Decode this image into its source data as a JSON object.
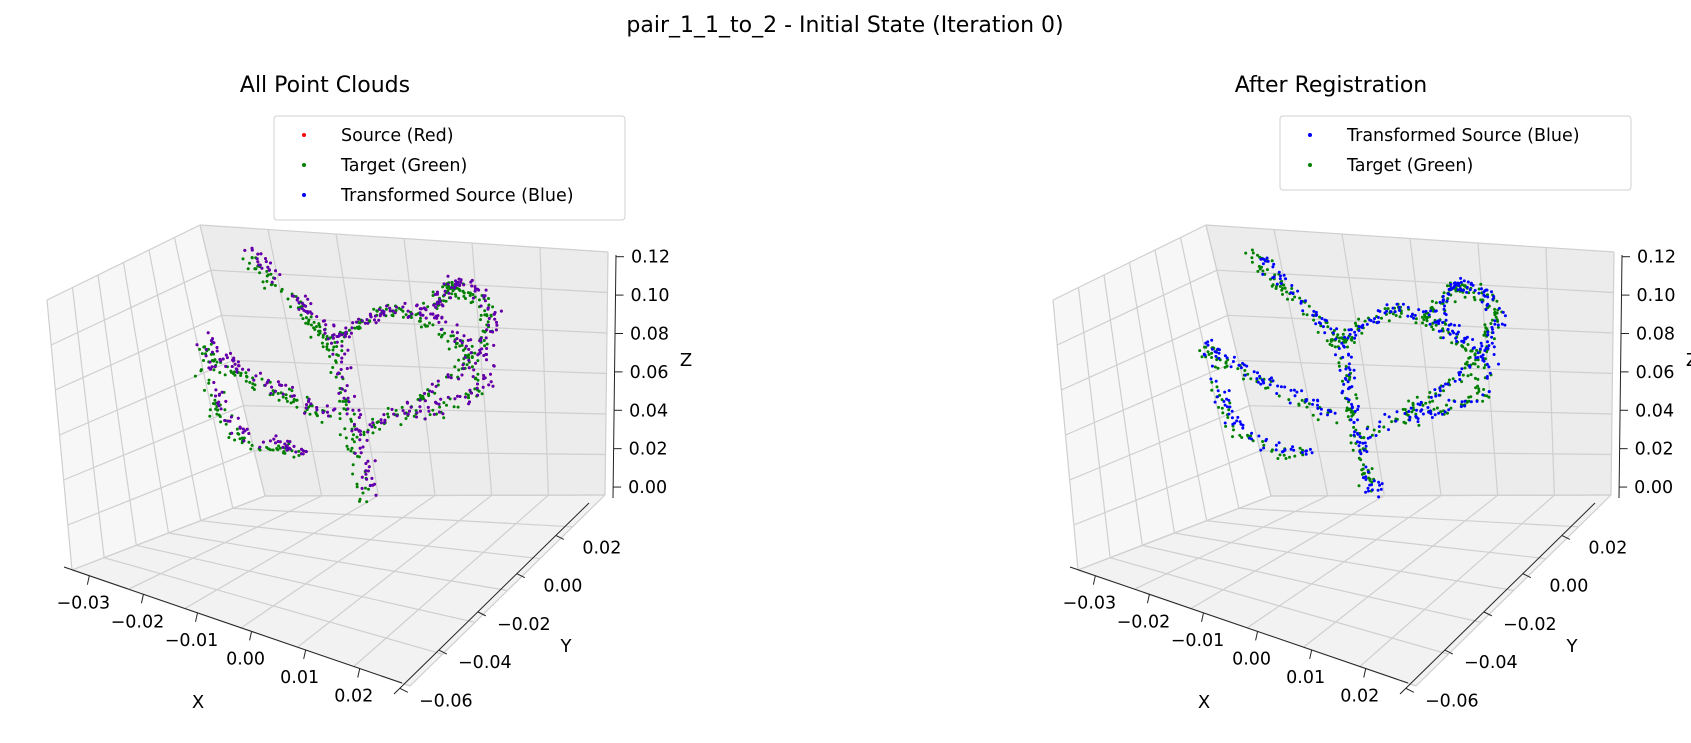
{
  "figure": {
    "suptitle": "pair_1_1_to_2 - Initial State (Iteration 0)"
  },
  "colors": {
    "source": "#ff0000",
    "target": "#008000",
    "transformed": "#0000ff",
    "overlap": "#5a00b4"
  },
  "chart_data": [
    {
      "type": "scatter",
      "subtype": "3d",
      "title": "All Point Clouds",
      "xlabel": "X",
      "ylabel": "Y",
      "zlabel": "Z",
      "xticks": [
        "−0.03",
        "−0.02",
        "−0.01",
        "0.00",
        "0.01",
        "0.02"
      ],
      "yticks": [
        "−0.06",
        "−0.04",
        "−0.02",
        "0.00",
        "0.02"
      ],
      "zticks": [
        "0.00",
        "0.02",
        "0.04",
        "0.06",
        "0.08",
        "0.10",
        "0.12"
      ],
      "xlim": [
        -0.035,
        0.028
      ],
      "ylim": [
        -0.065,
        0.035
      ],
      "zlim": [
        0.0,
        0.125
      ],
      "legend_placement": "upper-right",
      "legend": [
        "Source (Red)",
        "Target (Green)",
        "Transformed Source (Blue)"
      ],
      "series": [
        {
          "name": "Source (Red)",
          "color": "#ff0000",
          "note": "hidden beneath the blue points"
        },
        {
          "name": "Target (Green)",
          "color": "#008000"
        },
        {
          "name": "Transformed Source (Blue)",
          "color": "#0000ff"
        }
      ]
    },
    {
      "type": "scatter",
      "subtype": "3d",
      "title": "After Registration",
      "xlabel": "X",
      "ylabel": "Y",
      "zlabel": "Z",
      "xticks": [
        "−0.03",
        "−0.02",
        "−0.01",
        "0.00",
        "0.01",
        "0.02"
      ],
      "yticks": [
        "−0.06",
        "−0.04",
        "−0.02",
        "0.00",
        "0.02"
      ],
      "zticks": [
        "0.00",
        "0.02",
        "0.04",
        "0.06",
        "0.08",
        "0.10",
        "0.12"
      ],
      "xlim": [
        -0.035,
        0.028
      ],
      "ylim": [
        -0.065,
        0.035
      ],
      "zlim": [
        0.0,
        0.125
      ],
      "legend_placement": "upper-right",
      "legend": [
        "Transformed Source (Blue)",
        "Target (Green)"
      ],
      "series": [
        {
          "name": "Transformed Source (Blue)",
          "color": "#0000ff"
        },
        {
          "name": "Target (Green)",
          "color": "#008000"
        }
      ]
    }
  ]
}
